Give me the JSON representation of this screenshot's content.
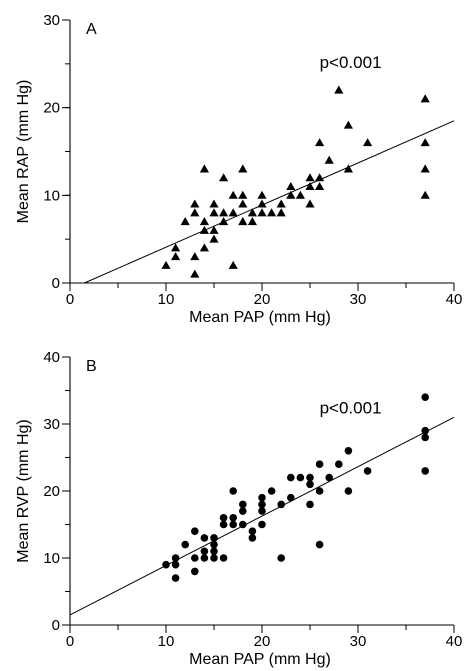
{
  "chart_data": [
    {
      "type": "scatter",
      "panel_label": "A",
      "xlabel": "Mean PAP (mm Hg)",
      "ylabel": "Mean RAP (mm Hg)",
      "xlim": [
        0,
        40
      ],
      "ylim": [
        0,
        30
      ],
      "xticks": [
        0,
        10,
        20,
        30,
        40
      ],
      "xticklabels": [
        "0",
        "10",
        "20",
        "30",
        "40"
      ],
      "yticks": [
        0,
        10,
        20,
        30
      ],
      "yticklabels": [
        "0",
        "10",
        "20",
        "30"
      ],
      "minor_tick_step_x": 5,
      "minor_tick_step_y": 5,
      "annotation": "p<0.001",
      "marker": "triangle",
      "grid": false,
      "fit_line": {
        "x0": 1.5,
        "y0": 0,
        "x1": 40,
        "y1": 18.5
      },
      "points": [
        [
          10,
          2
        ],
        [
          11,
          3
        ],
        [
          11,
          4
        ],
        [
          12,
          7
        ],
        [
          13,
          1
        ],
        [
          13,
          3
        ],
        [
          13,
          8
        ],
        [
          13,
          9
        ],
        [
          14,
          4
        ],
        [
          14,
          6
        ],
        [
          14,
          7
        ],
        [
          14,
          13
        ],
        [
          15,
          5
        ],
        [
          15,
          6
        ],
        [
          15,
          8
        ],
        [
          15,
          9
        ],
        [
          16,
          7
        ],
        [
          16,
          8
        ],
        [
          16,
          12
        ],
        [
          17,
          2
        ],
        [
          17,
          8
        ],
        [
          17,
          10
        ],
        [
          18,
          7
        ],
        [
          18,
          9
        ],
        [
          18,
          10
        ],
        [
          18,
          13
        ],
        [
          19,
          7
        ],
        [
          19,
          8
        ],
        [
          20,
          8
        ],
        [
          20,
          9
        ],
        [
          20,
          10
        ],
        [
          21,
          8
        ],
        [
          22,
          8
        ],
        [
          22,
          9
        ],
        [
          23,
          10
        ],
        [
          23,
          11
        ],
        [
          24,
          10
        ],
        [
          25,
          9
        ],
        [
          25,
          11
        ],
        [
          25,
          12
        ],
        [
          26,
          11
        ],
        [
          26,
          12
        ],
        [
          26,
          16
        ],
        [
          27,
          14
        ],
        [
          28,
          22
        ],
        [
          29,
          13
        ],
        [
          29,
          18
        ],
        [
          31,
          16
        ],
        [
          37,
          10
        ],
        [
          37,
          13
        ],
        [
          37,
          16
        ],
        [
          37,
          21
        ]
      ]
    },
    {
      "type": "scatter",
      "panel_label": "B",
      "xlabel": "Mean PAP (mm Hg)",
      "ylabel": "Mean RVP (mm Hg)",
      "xlim": [
        0,
        40
      ],
      "ylim": [
        0,
        40
      ],
      "xticks": [
        0,
        10,
        20,
        30,
        40
      ],
      "xticklabels": [
        "0",
        "10",
        "20",
        "30",
        "40"
      ],
      "yticks": [
        0,
        10,
        20,
        30,
        40
      ],
      "yticklabels": [
        "0",
        "10",
        "20",
        "30",
        "40"
      ],
      "minor_tick_step_x": 5,
      "minor_tick_step_y": 5,
      "annotation": "p<0.001",
      "marker": "circle",
      "grid": false,
      "fit_line": {
        "x0": 0,
        "y0": 1.5,
        "x1": 40,
        "y1": 31
      },
      "points": [
        [
          10,
          9
        ],
        [
          11,
          7
        ],
        [
          11,
          9
        ],
        [
          11,
          10
        ],
        [
          12,
          12
        ],
        [
          13,
          8
        ],
        [
          13,
          10
        ],
        [
          13,
          14
        ],
        [
          14,
          10
        ],
        [
          14,
          11
        ],
        [
          14,
          13
        ],
        [
          15,
          10
        ],
        [
          15,
          11
        ],
        [
          15,
          12
        ],
        [
          15,
          13
        ],
        [
          16,
          10
        ],
        [
          16,
          15
        ],
        [
          16,
          16
        ],
        [
          17,
          15
        ],
        [
          17,
          16
        ],
        [
          17,
          20
        ],
        [
          18,
          15
        ],
        [
          18,
          17
        ],
        [
          18,
          18
        ],
        [
          19,
          13
        ],
        [
          19,
          14
        ],
        [
          20,
          15
        ],
        [
          20,
          17
        ],
        [
          20,
          18
        ],
        [
          20,
          19
        ],
        [
          21,
          20
        ],
        [
          22,
          10
        ],
        [
          22,
          18
        ],
        [
          23,
          19
        ],
        [
          23,
          22
        ],
        [
          24,
          22
        ],
        [
          25,
          18
        ],
        [
          25,
          21
        ],
        [
          25,
          22
        ],
        [
          26,
          12
        ],
        [
          26,
          20
        ],
        [
          26,
          24
        ],
        [
          27,
          22
        ],
        [
          28,
          24
        ],
        [
          29,
          20
        ],
        [
          29,
          26
        ],
        [
          31,
          23
        ],
        [
          37,
          23
        ],
        [
          37,
          28
        ],
        [
          37,
          29
        ],
        [
          37,
          34
        ]
      ]
    }
  ]
}
